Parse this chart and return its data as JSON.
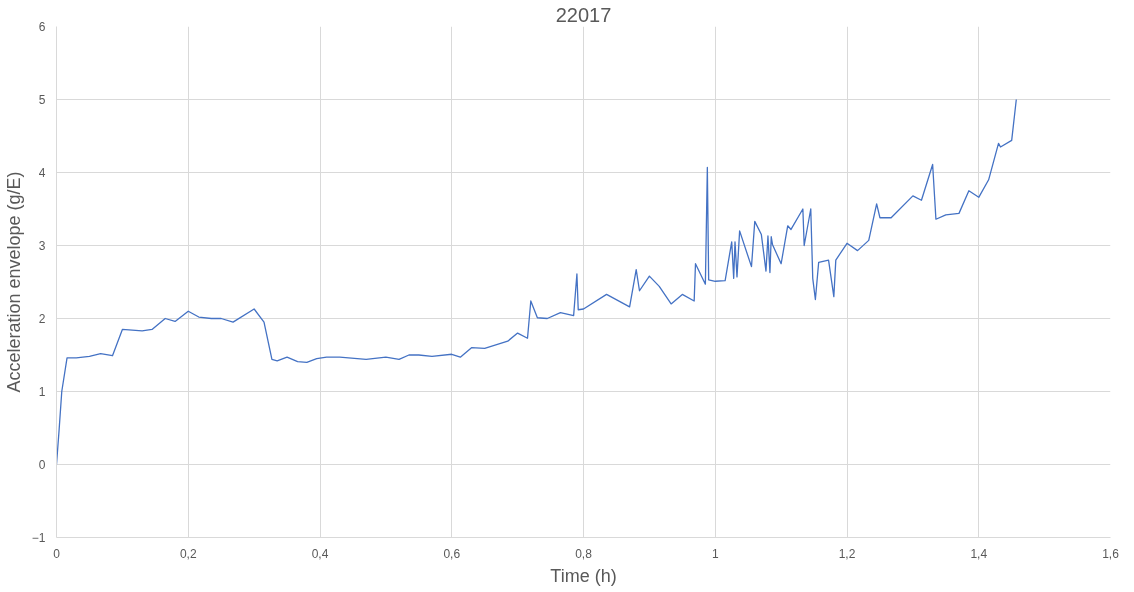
{
  "chart_data": {
    "type": "line",
    "title": "22017",
    "xlabel": "Time (h)",
    "ylabel": "Acceleration envelope (g/E)",
    "xlim": [
      0,
      1.6
    ],
    "xticks": [
      0,
      {
        "value": 0.2,
        "label": "0,2"
      },
      {
        "value": 0.4,
        "label": "0,4"
      },
      {
        "value": 0.6,
        "label": "0,6"
      },
      {
        "value": 0.8,
        "label": "0,8"
      },
      1,
      {
        "value": 1.2,
        "label": "1,2"
      },
      {
        "value": 1.4,
        "label": "1,4"
      },
      {
        "value": 1.6,
        "label": "1,6"
      }
    ],
    "ylim": [
      -1,
      6
    ],
    "yticks": [
      -1,
      0,
      1,
      2,
      3,
      4,
      5,
      6
    ],
    "grid": true,
    "line_style": "solid",
    "series": [
      {
        "color": "#4472c4",
        "x": [
          0,
          0.004,
          0.008,
          0.016,
          0.03,
          0.05,
          0.067,
          0.085,
          0.1,
          0.13,
          0.145,
          0.165,
          0.18,
          0.2,
          0.216,
          0.235,
          0.25,
          0.268,
          0.3,
          0.315,
          0.327,
          0.335,
          0.35,
          0.366,
          0.38,
          0.395,
          0.41,
          0.43,
          0.47,
          0.5,
          0.52,
          0.535,
          0.55,
          0.57,
          0.6,
          0.613,
          0.63,
          0.65,
          0.685,
          0.7,
          0.715,
          0.72,
          0.73,
          0.745,
          0.765,
          0.785,
          0.79,
          0.792,
          0.8,
          0.835,
          0.87,
          0.88,
          0.885,
          0.9,
          0.915,
          0.933,
          0.95,
          0.968,
          0.97,
          0.985,
          0.988,
          0.99,
          1.0,
          1.015,
          1.025,
          1.028,
          1.03,
          1.033,
          1.037,
          1.055,
          1.06,
          1.07,
          1.077,
          1.08,
          1.083,
          1.085,
          1.087,
          1.1,
          1.11,
          1.115,
          1.133,
          1.135,
          1.145,
          1.148,
          1.152,
          1.157,
          1.172,
          1.18,
          1.183,
          1.2,
          1.216,
          1.233,
          1.245,
          1.25,
          1.267,
          1.3,
          1.313,
          1.33,
          1.335,
          1.35,
          1.37,
          1.385,
          1.4,
          1.415,
          1.43,
          1.433,
          1.45,
          1.457
        ],
        "values": [
          0,
          0.48,
          1.0,
          1.46,
          1.46,
          1.48,
          1.52,
          1.49,
          1.85,
          1.83,
          1.85,
          2.0,
          1.96,
          2.1,
          2.02,
          2.0,
          2.0,
          1.95,
          2.13,
          1.95,
          1.44,
          1.42,
          1.47,
          1.41,
          1.4,
          1.45,
          1.47,
          1.47,
          1.44,
          1.47,
          1.44,
          1.5,
          1.5,
          1.48,
          1.51,
          1.47,
          1.6,
          1.59,
          1.69,
          1.8,
          1.73,
          2.24,
          2.01,
          2.0,
          2.08,
          2.04,
          2.61,
          2.12,
          2.13,
          2.33,
          2.16,
          2.67,
          2.38,
          2.58,
          2.44,
          2.2,
          2.33,
          2.24,
          2.75,
          2.47,
          4.07,
          2.53,
          2.51,
          2.52,
          3.05,
          2.55,
          3.05,
          2.57,
          3.2,
          2.71,
          3.33,
          3.15,
          2.65,
          3.13,
          2.63,
          3.12,
          3.01,
          2.75,
          3.27,
          3.22,
          3.5,
          3.0,
          3.5,
          2.55,
          2.26,
          2.77,
          2.8,
          2.3,
          2.8,
          3.03,
          2.93,
          3.07,
          3.57,
          3.38,
          3.38,
          3.68,
          3.62,
          4.11,
          3.36,
          3.42,
          3.44,
          3.75,
          3.66,
          3.9,
          4.4,
          4.35,
          4.44,
          5.0
        ]
      }
    ]
  }
}
